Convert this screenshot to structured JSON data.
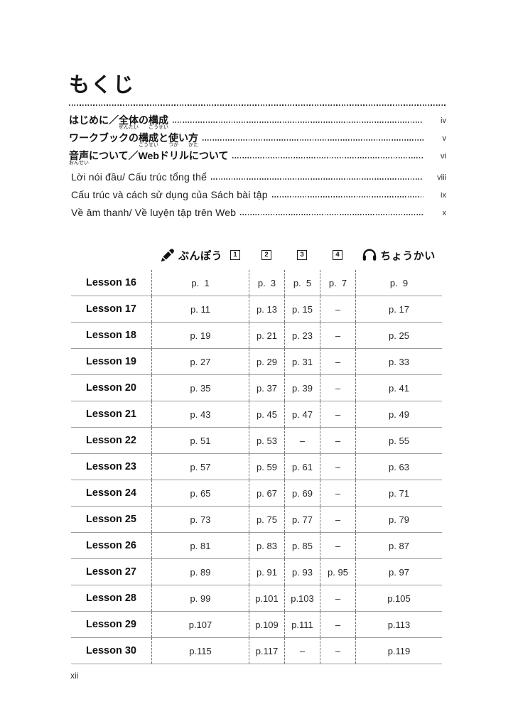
{
  "page": {
    "title": "もくじ",
    "page_number": "xii"
  },
  "toc": {
    "japanese_entries": [
      {
        "segments": [
          {
            "t": "はじめに／"
          },
          {
            "t": "全体",
            "r": "ぜんたい"
          },
          {
            "t": "の"
          },
          {
            "t": "構成",
            "r": "こうせい"
          }
        ],
        "page": "iv"
      },
      {
        "segments": [
          {
            "t": "ワークブックの"
          },
          {
            "t": "構成",
            "r": "こうせい"
          },
          {
            "t": "と"
          },
          {
            "t": "使",
            "r": "つか"
          },
          {
            "t": "い"
          },
          {
            "t": "方",
            "r": "かた"
          }
        ],
        "page": "v"
      },
      {
        "segments": [
          {
            "t": "音声",
            "r": "おんせい"
          },
          {
            "t": "について／Webドリルについて"
          }
        ],
        "page": "vi"
      }
    ],
    "vietnamese_entries": [
      {
        "label": "Lời nói đầu/ Cấu trúc tổng thể",
        "page": "viii"
      },
      {
        "label": "Cấu trúc và cách sử dụng của Sách bài tập",
        "page": "ix"
      },
      {
        "label": "Về âm thanh/ Về luyện tập trên Web",
        "page": "x"
      }
    ]
  },
  "lesson_table": {
    "header": {
      "grammar_icon": "pencil-icon",
      "grammar_label": "ぶんぽう",
      "part_numbers": [
        "1",
        "2",
        "3",
        "4"
      ],
      "listening_icon": "headphones-icon",
      "listening_label": "ちょうかい"
    },
    "rows": [
      {
        "lesson": "Lesson 16",
        "cells": [
          "p.  1",
          "p.  3",
          "p.  5",
          "p.  7",
          "p.  9"
        ]
      },
      {
        "lesson": "Lesson 17",
        "cells": [
          "p. 11",
          "p. 13",
          "p. 15",
          "–",
          "p. 17"
        ]
      },
      {
        "lesson": "Lesson 18",
        "cells": [
          "p. 19",
          "p. 21",
          "p. 23",
          "–",
          "p. 25"
        ]
      },
      {
        "lesson": "Lesson 19",
        "cells": [
          "p. 27",
          "p. 29",
          "p. 31",
          "–",
          "p. 33"
        ]
      },
      {
        "lesson": "Lesson 20",
        "cells": [
          "p. 35",
          "p. 37",
          "p. 39",
          "–",
          "p. 41"
        ]
      },
      {
        "lesson": "Lesson 21",
        "cells": [
          "p. 43",
          "p. 45",
          "p. 47",
          "–",
          "p. 49"
        ]
      },
      {
        "lesson": "Lesson 22",
        "cells": [
          "p. 51",
          "p. 53",
          "–",
          "–",
          "p. 55"
        ]
      },
      {
        "lesson": "Lesson 23",
        "cells": [
          "p. 57",
          "p. 59",
          "p. 61",
          "–",
          "p. 63"
        ]
      },
      {
        "lesson": "Lesson 24",
        "cells": [
          "p. 65",
          "p. 67",
          "p. 69",
          "–",
          "p. 71"
        ]
      },
      {
        "lesson": "Lesson 25",
        "cells": [
          "p. 73",
          "p. 75",
          "p. 77",
          "–",
          "p. 79"
        ]
      },
      {
        "lesson": "Lesson 26",
        "cells": [
          "p. 81",
          "p. 83",
          "p. 85",
          "–",
          "p. 87"
        ]
      },
      {
        "lesson": "Lesson 27",
        "cells": [
          "p. 89",
          "p. 91",
          "p. 93",
          "p. 95",
          "p. 97"
        ]
      },
      {
        "lesson": "Lesson 28",
        "cells": [
          "p. 99",
          "p.101",
          "p.103",
          "–",
          "p.105"
        ]
      },
      {
        "lesson": "Lesson 29",
        "cells": [
          "p.107",
          "p.109",
          "p.111",
          "–",
          "p.113"
        ]
      },
      {
        "lesson": "Lesson 30",
        "cells": [
          "p.115",
          "p.117",
          "–",
          "–",
          "p.119"
        ]
      }
    ]
  }
}
